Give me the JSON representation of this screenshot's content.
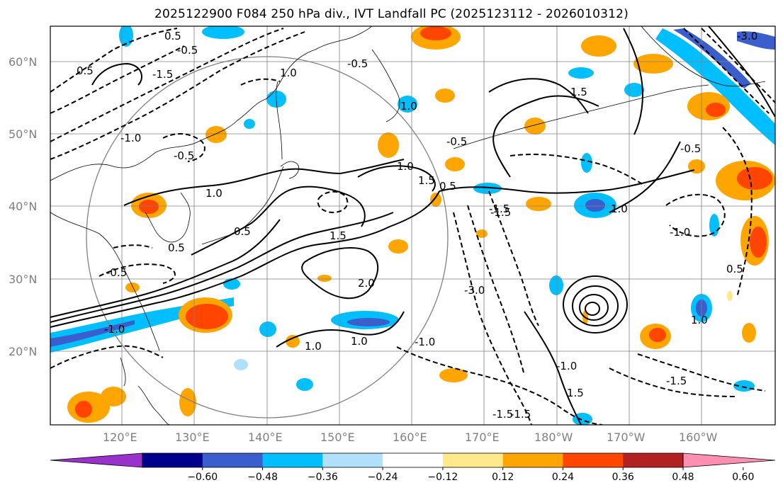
{
  "title": "2025122900 F084 250 hPa div., IVT Landfall PC (2025123112 - 2026010312)",
  "map": {
    "lat_labels": [
      "60°N",
      "50°N",
      "40°N",
      "30°N",
      "20°N"
    ],
    "lon_labels": [
      "120°E",
      "130°E",
      "140°E",
      "150°E",
      "160°E",
      "170°E",
      "180°W",
      "170°W",
      "160°W"
    ],
    "contour_labels": [
      "0.5",
      "-0.5",
      "1.0",
      "-1.5",
      "-1.0",
      "-0.5",
      "1.0",
      "0.5",
      "1.5",
      "-0.5",
      "0.5",
      "1.0",
      "-1.0",
      "1.0",
      "1.5",
      "0.5",
      "-0.5",
      "-1.5",
      "1.0",
      "-1.0",
      "0.5",
      "2.0",
      "-3.0",
      "1.0",
      "-0.5",
      "1.5",
      "1.0",
      "-1.5",
      "-1.5",
      "-3.0",
      "-0.5",
      "-1.0",
      "0.5",
      "-1.5",
      "1.0",
      "1.5",
      "-1.0",
      "-1.5"
    ],
    "colors": {
      "contour": "#000000",
      "grid": "#808080",
      "coast": "#000000"
    }
  },
  "colorbar": {
    "ticks": [
      "−0.60",
      "−0.48",
      "−0.36",
      "−0.24",
      "−0.12",
      "0.12",
      "0.24",
      "0.36",
      "0.48",
      "0.60"
    ],
    "colors": [
      "#9932cc",
      "#00008b",
      "#3a5fcd",
      "#00bfff",
      "#b0e0fa",
      "#ffffff",
      "#ffe98a",
      "#ffa500",
      "#ff4500",
      "#b22222",
      "#ff8fb0"
    ]
  }
}
